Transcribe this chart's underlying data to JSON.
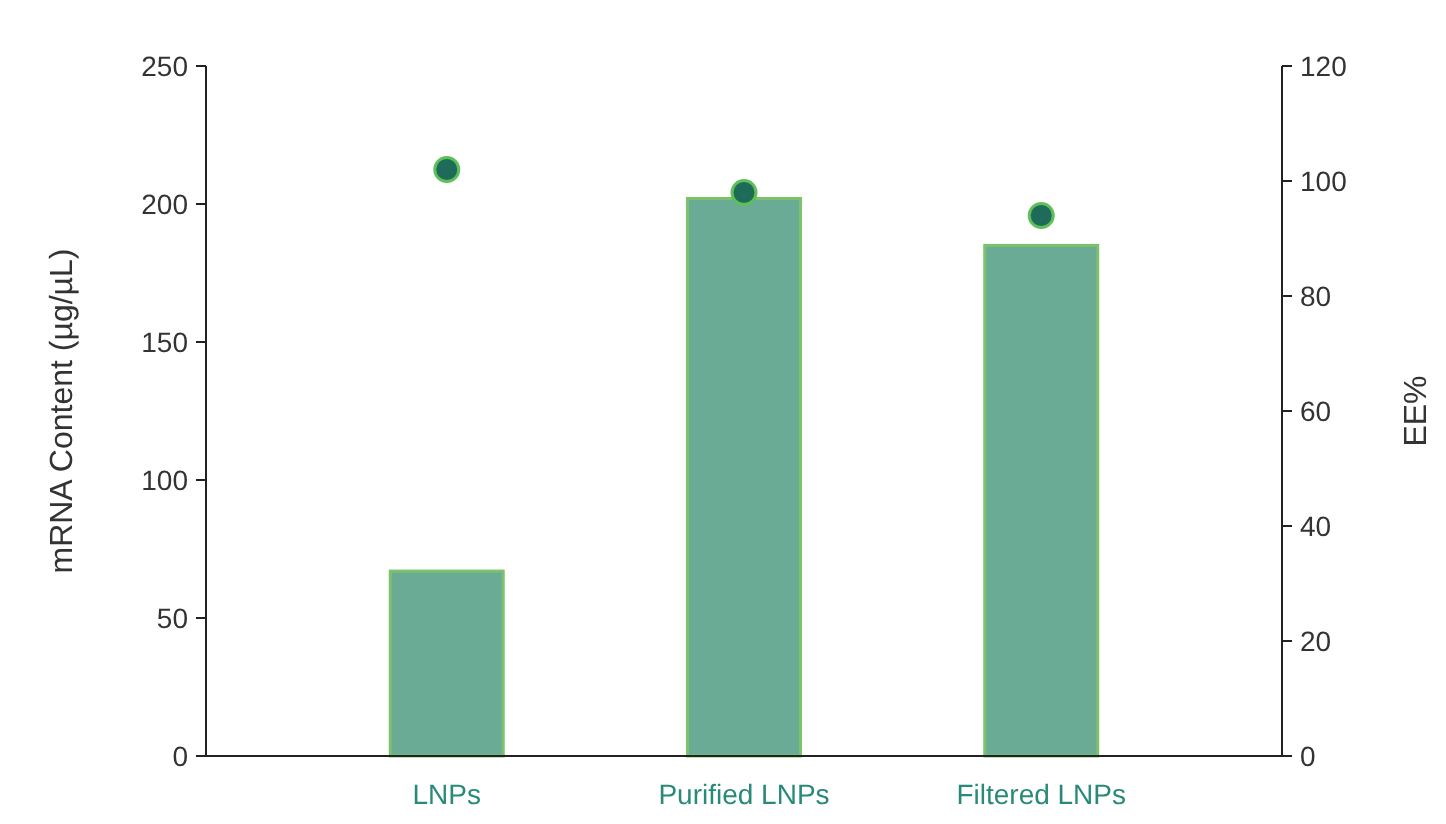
{
  "chart_data": {
    "type": "bar",
    "categories": [
      "LNPs",
      "Purified LNPs",
      "Filtered LNPs"
    ],
    "ylabel": "mRNA Content (µg/µL)",
    "y2label": "EE%",
    "series": [
      {
        "color": "#6aab96",
        "values": [
          67,
          202,
          185
        ]
      },
      {
        "type": "scatter",
        "axis": "y2",
        "color": "#1e6b5a",
        "values": [
          102,
          98,
          94
        ]
      }
    ],
    "ylim": [
      0,
      250
    ],
    "yticks": [
      0,
      50,
      100,
      150,
      200,
      250
    ],
    "y2lim": [
      0,
      120
    ],
    "y2ticks": [
      0,
      20,
      40,
      60,
      80,
      100,
      120
    ],
    "marker": "circle"
  }
}
